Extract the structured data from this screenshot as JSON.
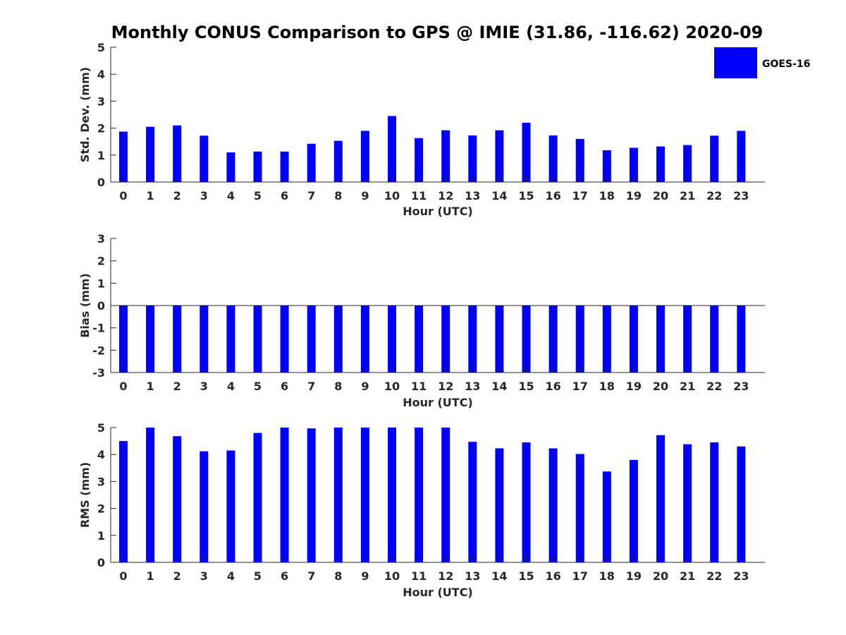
{
  "colors": {
    "bar": "#0000ff",
    "axis": "#262626",
    "text": "#000000"
  },
  "chart_data": [
    {
      "type": "bar",
      "title": "Monthly CONUS Comparison to GPS @ IMIE (31.86, -116.62) 2020-09",
      "xlabel": "Hour (UTC)",
      "ylabel": "Std. Dev. (mm)",
      "ylim": [
        0,
        5
      ],
      "yticks": [
        "0",
        "1",
        "2",
        "3",
        "4",
        "5"
      ],
      "categories": [
        "0",
        "1",
        "2",
        "3",
        "4",
        "5",
        "6",
        "7",
        "8",
        "9",
        "10",
        "11",
        "12",
        "13",
        "14",
        "15",
        "16",
        "17",
        "18",
        "19",
        "20",
        "21",
        "22",
        "23"
      ],
      "series": [
        {
          "name": "GOES-16",
          "values": [
            1.87,
            2.05,
            2.1,
            1.72,
            1.1,
            1.13,
            1.13,
            1.42,
            1.53,
            1.9,
            2.45,
            1.63,
            1.92,
            1.73,
            1.92,
            2.2,
            1.73,
            1.6,
            1.18,
            1.27,
            1.32,
            1.37,
            1.72,
            1.9
          ]
        }
      ],
      "legend": {
        "entries": [
          "GOES-16"
        ],
        "position": "top-right"
      },
      "grid": false
    },
    {
      "type": "bar",
      "title": "",
      "xlabel": "Hour (UTC)",
      "ylabel": "Bias (mm)",
      "ylim": [
        -3,
        3
      ],
      "yticks": [
        "-3",
        "-2",
        "-1",
        "0",
        "1",
        "2",
        "3"
      ],
      "categories": [
        "0",
        "1",
        "2",
        "3",
        "4",
        "5",
        "6",
        "7",
        "8",
        "9",
        "10",
        "11",
        "12",
        "13",
        "14",
        "15",
        "16",
        "17",
        "18",
        "19",
        "20",
        "21",
        "22",
        "23"
      ],
      "series": [
        {
          "name": "GOES-16",
          "values": [
            -3,
            -3,
            -3,
            -3,
            -3,
            -3,
            -3,
            -3,
            -3,
            -3,
            -3,
            -3,
            -3,
            -3,
            -3,
            -3,
            -3,
            -3,
            -3,
            -3,
            -3,
            -3,
            -3,
            -3
          ]
        }
      ],
      "baseline": 0,
      "grid": false
    },
    {
      "type": "bar",
      "title": "",
      "xlabel": "Hour (UTC)",
      "ylabel": "RMS (mm)",
      "ylim": [
        0,
        5
      ],
      "yticks": [
        "0",
        "1",
        "2",
        "3",
        "4",
        "5"
      ],
      "categories": [
        "0",
        "1",
        "2",
        "3",
        "4",
        "5",
        "6",
        "7",
        "8",
        "9",
        "10",
        "11",
        "12",
        "13",
        "14",
        "15",
        "16",
        "17",
        "18",
        "19",
        "20",
        "21",
        "22",
        "23"
      ],
      "series": [
        {
          "name": "GOES-16",
          "values": [
            4.5,
            5.0,
            4.68,
            4.12,
            4.15,
            4.8,
            5.0,
            4.97,
            5.0,
            5.0,
            5.0,
            5.0,
            5.0,
            4.47,
            4.23,
            4.45,
            4.23,
            4.02,
            3.37,
            3.8,
            4.72,
            4.38,
            4.45,
            4.3
          ]
        }
      ],
      "grid": false
    }
  ]
}
